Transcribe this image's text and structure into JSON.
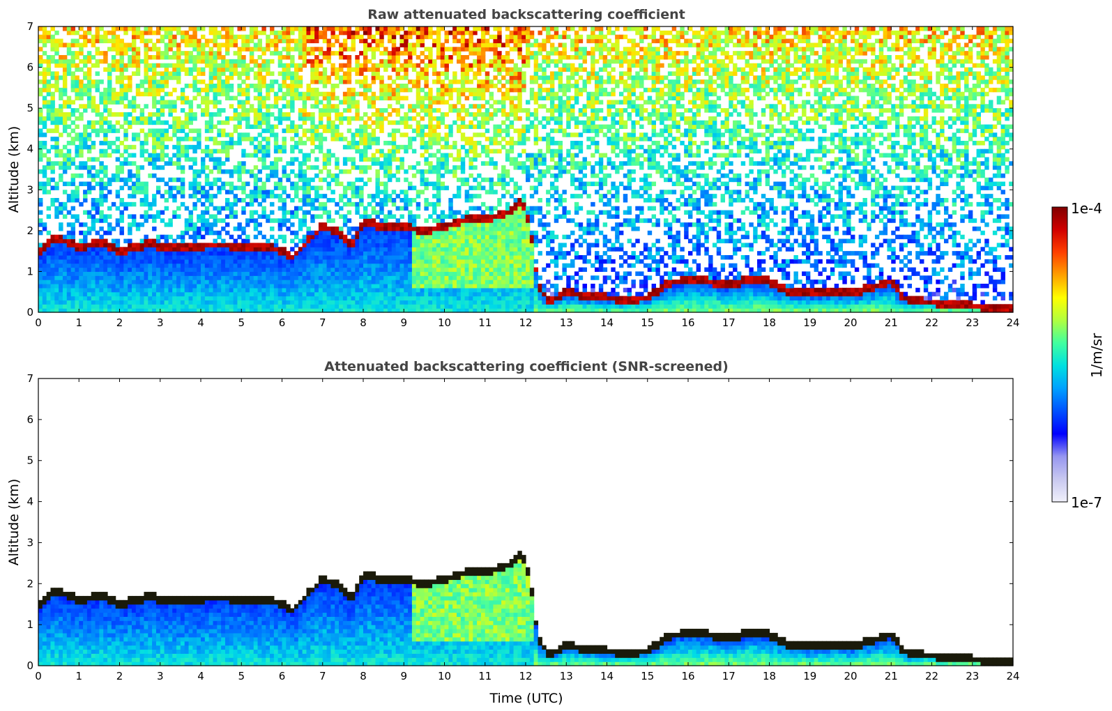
{
  "chart_data": [
    {
      "type": "heatmap",
      "title": "Raw attenuated backscattering coefficient",
      "xlabel": "",
      "ylabel": "Altitude (km)",
      "xlim": [
        0,
        24
      ],
      "ylim": [
        0,
        7
      ],
      "xticks": [
        "0",
        "1",
        "2",
        "3",
        "4",
        "5",
        "6",
        "7",
        "8",
        "9",
        "10",
        "11",
        "12",
        "13",
        "14",
        "15",
        "16",
        "17",
        "18",
        "19",
        "20",
        "21",
        "22",
        "23",
        "24"
      ],
      "yticks": [
        "0",
        "1",
        "2",
        "3",
        "4",
        "5",
        "6",
        "7"
      ],
      "screened": false,
      "layer_top_km": [
        [
          0.0,
          1.4
        ],
        [
          0.4,
          1.85
        ],
        [
          1.0,
          1.6
        ],
        [
          1.6,
          1.7
        ],
        [
          2.0,
          1.5
        ],
        [
          2.5,
          1.6
        ],
        [
          2.8,
          1.75
        ],
        [
          3.0,
          1.55
        ],
        [
          3.9,
          1.55
        ],
        [
          4.2,
          1.65
        ],
        [
          5.0,
          1.62
        ],
        [
          5.6,
          1.6
        ],
        [
          6.0,
          1.5
        ],
        [
          6.2,
          1.3
        ],
        [
          7.0,
          2.1
        ],
        [
          7.5,
          1.9
        ],
        [
          7.7,
          1.6
        ],
        [
          8.0,
          2.2
        ],
        [
          8.5,
          2.1
        ],
        [
          9.0,
          2.1
        ],
        [
          9.5,
          2.0
        ],
        [
          10.0,
          2.1
        ],
        [
          10.5,
          2.25
        ],
        [
          11.0,
          2.3
        ],
        [
          11.5,
          2.4
        ],
        [
          11.9,
          2.7
        ],
        [
          12.1,
          2.2
        ],
        [
          12.3,
          0.65
        ],
        [
          12.6,
          0.25
        ],
        [
          13.0,
          0.5
        ],
        [
          13.5,
          0.4
        ],
        [
          14.0,
          0.35
        ],
        [
          14.5,
          0.3
        ],
        [
          15.0,
          0.35
        ],
        [
          15.5,
          0.7
        ],
        [
          16.0,
          0.8
        ],
        [
          16.5,
          0.75
        ],
        [
          17.0,
          0.65
        ],
        [
          17.5,
          0.8
        ],
        [
          18.0,
          0.75
        ],
        [
          18.5,
          0.5
        ],
        [
          19.0,
          0.45
        ],
        [
          19.5,
          0.5
        ],
        [
          20.0,
          0.45
        ],
        [
          20.5,
          0.6
        ],
        [
          21.0,
          0.75
        ],
        [
          21.3,
          0.35
        ],
        [
          21.8,
          0.25
        ],
        [
          22.5,
          0.2
        ],
        [
          23.0,
          0.15
        ],
        [
          23.5,
          0.1
        ],
        [
          23.9,
          0.08
        ]
      ],
      "colorscale": "jet",
      "colorbar": {
        "min_label": "1e-7",
        "max_label": "1e-4",
        "label": "1/m/sr",
        "log": true
      }
    },
    {
      "type": "heatmap",
      "title": "Attenuated backscattering coefficient (SNR-screened)",
      "xlabel": "Time (UTC)",
      "ylabel": "Altitude (km)",
      "xlim": [
        0,
        24
      ],
      "ylim": [
        0,
        7
      ],
      "xticks": [
        "0",
        "1",
        "2",
        "3",
        "4",
        "5",
        "6",
        "7",
        "8",
        "9",
        "10",
        "11",
        "12",
        "13",
        "14",
        "15",
        "16",
        "17",
        "18",
        "19",
        "20",
        "21",
        "22",
        "23",
        "24"
      ],
      "yticks": [
        "0",
        "1",
        "2",
        "3",
        "4",
        "5",
        "6",
        "7"
      ],
      "screened": true,
      "layer_top_km": [
        [
          0.0,
          1.4
        ],
        [
          0.4,
          1.85
        ],
        [
          1.0,
          1.6
        ],
        [
          1.6,
          1.7
        ],
        [
          2.0,
          1.5
        ],
        [
          2.5,
          1.6
        ],
        [
          2.8,
          1.75
        ],
        [
          3.0,
          1.55
        ],
        [
          3.9,
          1.55
        ],
        [
          4.2,
          1.65
        ],
        [
          5.0,
          1.62
        ],
        [
          5.6,
          1.6
        ],
        [
          6.0,
          1.5
        ],
        [
          6.2,
          1.3
        ],
        [
          7.0,
          2.1
        ],
        [
          7.5,
          1.9
        ],
        [
          7.7,
          1.6
        ],
        [
          8.0,
          2.2
        ],
        [
          8.5,
          2.1
        ],
        [
          9.0,
          2.1
        ],
        [
          9.5,
          2.0
        ],
        [
          10.0,
          2.1
        ],
        [
          10.5,
          2.25
        ],
        [
          11.0,
          2.3
        ],
        [
          11.5,
          2.4
        ],
        [
          11.9,
          2.7
        ],
        [
          12.1,
          2.2
        ],
        [
          12.3,
          0.65
        ],
        [
          12.6,
          0.25
        ],
        [
          13.0,
          0.5
        ],
        [
          13.5,
          0.4
        ],
        [
          14.0,
          0.35
        ],
        [
          14.5,
          0.3
        ],
        [
          15.0,
          0.35
        ],
        [
          15.5,
          0.7
        ],
        [
          16.0,
          0.8
        ],
        [
          16.5,
          0.75
        ],
        [
          17.0,
          0.65
        ],
        [
          17.5,
          0.8
        ],
        [
          18.0,
          0.75
        ],
        [
          18.5,
          0.5
        ],
        [
          19.0,
          0.45
        ],
        [
          19.5,
          0.5
        ],
        [
          20.0,
          0.45
        ],
        [
          20.5,
          0.6
        ],
        [
          21.0,
          0.75
        ],
        [
          21.3,
          0.35
        ],
        [
          21.8,
          0.25
        ],
        [
          22.5,
          0.2
        ],
        [
          23.0,
          0.15
        ],
        [
          23.5,
          0.1
        ],
        [
          23.9,
          0.08
        ]
      ],
      "colorscale": "jet",
      "colorbar": {
        "min_label": "1e-7",
        "max_label": "1e-4",
        "label": "1/m/sr",
        "log": true
      }
    }
  ],
  "colorbar": {
    "max_label": "1e-4",
    "min_label": "1e-7",
    "label": "1/m/sr",
    "colors": [
      "#f0f0fa",
      "#c8c8f0",
      "#9696f0",
      "#0000ff",
      "#0050ff",
      "#00a0ff",
      "#00e0e0",
      "#40ffa0",
      "#b0ff40",
      "#ffff00",
      "#ffa000",
      "#ff4000",
      "#d00000",
      "#800000"
    ]
  }
}
